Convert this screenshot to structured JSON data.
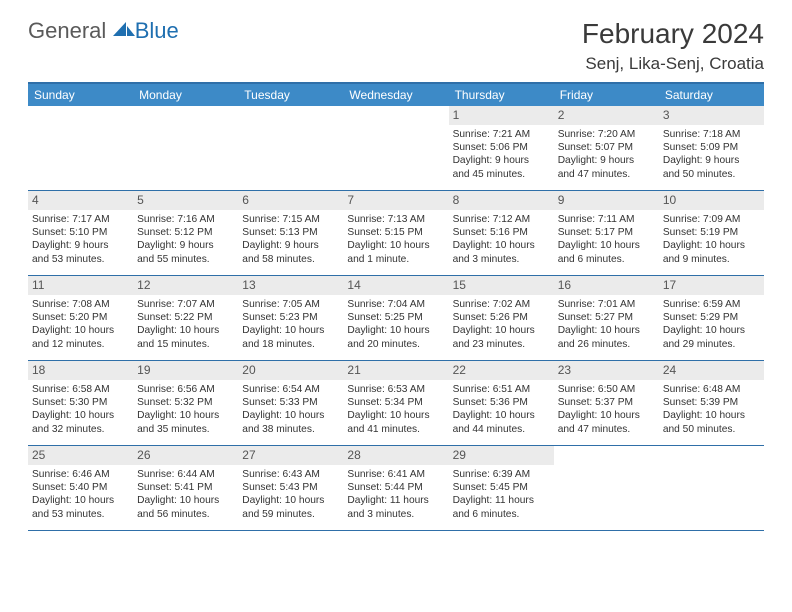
{
  "logo": {
    "word1": "General",
    "word2": "Blue"
  },
  "header": {
    "title": "February 2024",
    "location": "Senj, Lika-Senj, Croatia"
  },
  "colors": {
    "header_bar": "#3d8ac7",
    "rule": "#2f6fa8",
    "daynum_bg": "#ebebeb",
    "logo_blue": "#1f6fb0"
  },
  "weekdays": [
    "Sunday",
    "Monday",
    "Tuesday",
    "Wednesday",
    "Thursday",
    "Friday",
    "Saturday"
  ],
  "weeks": [
    [
      null,
      null,
      null,
      null,
      {
        "n": "1",
        "sunrise": "Sunrise: 7:21 AM",
        "sunset": "Sunset: 5:06 PM",
        "day1": "Daylight: 9 hours",
        "day2": "and 45 minutes."
      },
      {
        "n": "2",
        "sunrise": "Sunrise: 7:20 AM",
        "sunset": "Sunset: 5:07 PM",
        "day1": "Daylight: 9 hours",
        "day2": "and 47 minutes."
      },
      {
        "n": "3",
        "sunrise": "Sunrise: 7:18 AM",
        "sunset": "Sunset: 5:09 PM",
        "day1": "Daylight: 9 hours",
        "day2": "and 50 minutes."
      }
    ],
    [
      {
        "n": "4",
        "sunrise": "Sunrise: 7:17 AM",
        "sunset": "Sunset: 5:10 PM",
        "day1": "Daylight: 9 hours",
        "day2": "and 53 minutes."
      },
      {
        "n": "5",
        "sunrise": "Sunrise: 7:16 AM",
        "sunset": "Sunset: 5:12 PM",
        "day1": "Daylight: 9 hours",
        "day2": "and 55 minutes."
      },
      {
        "n": "6",
        "sunrise": "Sunrise: 7:15 AM",
        "sunset": "Sunset: 5:13 PM",
        "day1": "Daylight: 9 hours",
        "day2": "and 58 minutes."
      },
      {
        "n": "7",
        "sunrise": "Sunrise: 7:13 AM",
        "sunset": "Sunset: 5:15 PM",
        "day1": "Daylight: 10 hours",
        "day2": "and 1 minute."
      },
      {
        "n": "8",
        "sunrise": "Sunrise: 7:12 AM",
        "sunset": "Sunset: 5:16 PM",
        "day1": "Daylight: 10 hours",
        "day2": "and 3 minutes."
      },
      {
        "n": "9",
        "sunrise": "Sunrise: 7:11 AM",
        "sunset": "Sunset: 5:17 PM",
        "day1": "Daylight: 10 hours",
        "day2": "and 6 minutes."
      },
      {
        "n": "10",
        "sunrise": "Sunrise: 7:09 AM",
        "sunset": "Sunset: 5:19 PM",
        "day1": "Daylight: 10 hours",
        "day2": "and 9 minutes."
      }
    ],
    [
      {
        "n": "11",
        "sunrise": "Sunrise: 7:08 AM",
        "sunset": "Sunset: 5:20 PM",
        "day1": "Daylight: 10 hours",
        "day2": "and 12 minutes."
      },
      {
        "n": "12",
        "sunrise": "Sunrise: 7:07 AM",
        "sunset": "Sunset: 5:22 PM",
        "day1": "Daylight: 10 hours",
        "day2": "and 15 minutes."
      },
      {
        "n": "13",
        "sunrise": "Sunrise: 7:05 AM",
        "sunset": "Sunset: 5:23 PM",
        "day1": "Daylight: 10 hours",
        "day2": "and 18 minutes."
      },
      {
        "n": "14",
        "sunrise": "Sunrise: 7:04 AM",
        "sunset": "Sunset: 5:25 PM",
        "day1": "Daylight: 10 hours",
        "day2": "and 20 minutes."
      },
      {
        "n": "15",
        "sunrise": "Sunrise: 7:02 AM",
        "sunset": "Sunset: 5:26 PM",
        "day1": "Daylight: 10 hours",
        "day2": "and 23 minutes."
      },
      {
        "n": "16",
        "sunrise": "Sunrise: 7:01 AM",
        "sunset": "Sunset: 5:27 PM",
        "day1": "Daylight: 10 hours",
        "day2": "and 26 minutes."
      },
      {
        "n": "17",
        "sunrise": "Sunrise: 6:59 AM",
        "sunset": "Sunset: 5:29 PM",
        "day1": "Daylight: 10 hours",
        "day2": "and 29 minutes."
      }
    ],
    [
      {
        "n": "18",
        "sunrise": "Sunrise: 6:58 AM",
        "sunset": "Sunset: 5:30 PM",
        "day1": "Daylight: 10 hours",
        "day2": "and 32 minutes."
      },
      {
        "n": "19",
        "sunrise": "Sunrise: 6:56 AM",
        "sunset": "Sunset: 5:32 PM",
        "day1": "Daylight: 10 hours",
        "day2": "and 35 minutes."
      },
      {
        "n": "20",
        "sunrise": "Sunrise: 6:54 AM",
        "sunset": "Sunset: 5:33 PM",
        "day1": "Daylight: 10 hours",
        "day2": "and 38 minutes."
      },
      {
        "n": "21",
        "sunrise": "Sunrise: 6:53 AM",
        "sunset": "Sunset: 5:34 PM",
        "day1": "Daylight: 10 hours",
        "day2": "and 41 minutes."
      },
      {
        "n": "22",
        "sunrise": "Sunrise: 6:51 AM",
        "sunset": "Sunset: 5:36 PM",
        "day1": "Daylight: 10 hours",
        "day2": "and 44 minutes."
      },
      {
        "n": "23",
        "sunrise": "Sunrise: 6:50 AM",
        "sunset": "Sunset: 5:37 PM",
        "day1": "Daylight: 10 hours",
        "day2": "and 47 minutes."
      },
      {
        "n": "24",
        "sunrise": "Sunrise: 6:48 AM",
        "sunset": "Sunset: 5:39 PM",
        "day1": "Daylight: 10 hours",
        "day2": "and 50 minutes."
      }
    ],
    [
      {
        "n": "25",
        "sunrise": "Sunrise: 6:46 AM",
        "sunset": "Sunset: 5:40 PM",
        "day1": "Daylight: 10 hours",
        "day2": "and 53 minutes."
      },
      {
        "n": "26",
        "sunrise": "Sunrise: 6:44 AM",
        "sunset": "Sunset: 5:41 PM",
        "day1": "Daylight: 10 hours",
        "day2": "and 56 minutes."
      },
      {
        "n": "27",
        "sunrise": "Sunrise: 6:43 AM",
        "sunset": "Sunset: 5:43 PM",
        "day1": "Daylight: 10 hours",
        "day2": "and 59 minutes."
      },
      {
        "n": "28",
        "sunrise": "Sunrise: 6:41 AM",
        "sunset": "Sunset: 5:44 PM",
        "day1": "Daylight: 11 hours",
        "day2": "and 3 minutes."
      },
      {
        "n": "29",
        "sunrise": "Sunrise: 6:39 AM",
        "sunset": "Sunset: 5:45 PM",
        "day1": "Daylight: 11 hours",
        "day2": "and 6 minutes."
      },
      null,
      null
    ]
  ]
}
